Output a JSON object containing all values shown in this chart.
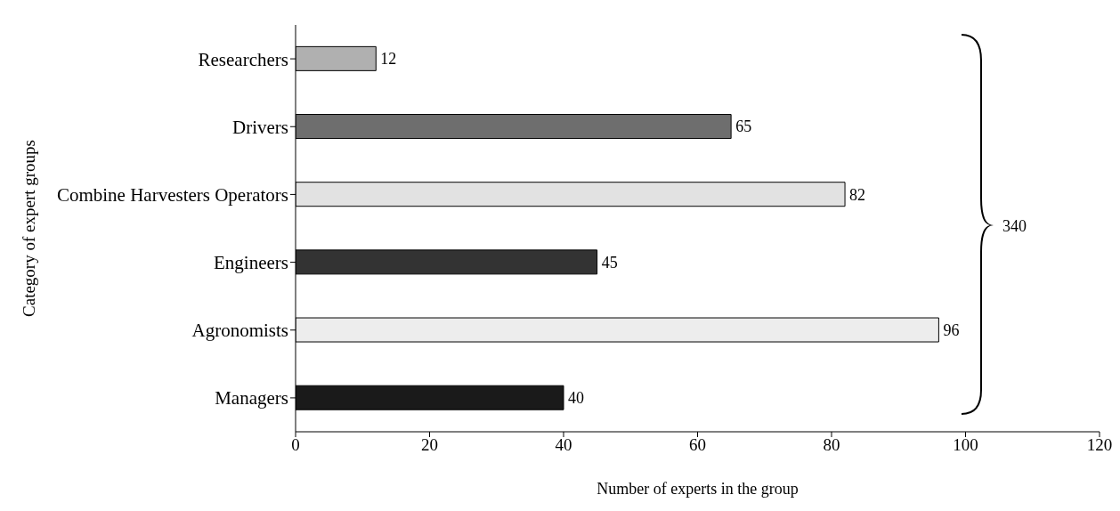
{
  "chart_data": {
    "type": "bar",
    "orientation": "horizontal",
    "xlabel": "Number of experts in the group",
    "ylabel": "Category of expert groups",
    "categories": [
      "Researchers",
      "Drivers",
      "Combine Harvesters Operators",
      "Engineers",
      "Agronomists",
      "Managers"
    ],
    "values": [
      12,
      65,
      82,
      45,
      96,
      40
    ],
    "colors": [
      "#b0b0b0",
      "#6e6e6e",
      "#e2e2e2",
      "#333333",
      "#ededed",
      "#1a1a1a"
    ],
    "xlim": [
      0,
      120
    ],
    "xticks": [
      0,
      20,
      40,
      60,
      80,
      100,
      120
    ],
    "data_labels": true,
    "annotations": [
      "340"
    ]
  }
}
